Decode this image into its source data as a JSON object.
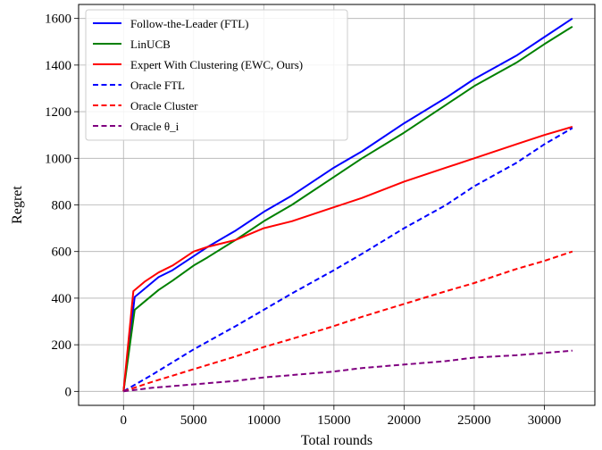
{
  "chart_data": {
    "type": "line",
    "title": "",
    "xlabel": "Total rounds",
    "ylabel": "Regret",
    "xlim": [
      -3200,
      33600
    ],
    "ylim": [
      -60,
      1660
    ],
    "x_ticks": [
      0,
      5000,
      10000,
      15000,
      20000,
      25000,
      30000
    ],
    "x_tick_labels": [
      "0",
      "5000",
      "10000",
      "15000",
      "20000",
      "25000",
      "30000"
    ],
    "y_ticks": [
      0,
      200,
      400,
      600,
      800,
      1000,
      1200,
      1400,
      1600
    ],
    "y_tick_labels": [
      "0",
      "200",
      "400",
      "600",
      "800",
      "1000",
      "1200",
      "1400",
      "1600"
    ],
    "grid": true,
    "legend_position": "top-left",
    "series": [
      {
        "name": "Follow-the-Leader (FTL)",
        "color": "#0000ff",
        "dash": "solid",
        "x": [
          0,
          800,
          1500,
          2500,
          3500,
          5000,
          6000,
          8000,
          10000,
          12000,
          15000,
          17000,
          20000,
          23000,
          25000,
          28000,
          30000,
          32000
        ],
        "y": [
          0,
          405,
          440,
          490,
          520,
          580,
          620,
          690,
          770,
          840,
          960,
          1030,
          1150,
          1260,
          1340,
          1440,
          1520,
          1600
        ]
      },
      {
        "name": "LinUCB",
        "color": "#008000",
        "dash": "solid",
        "x": [
          0,
          800,
          1500,
          2500,
          3500,
          5000,
          6000,
          8000,
          10000,
          12000,
          15000,
          17000,
          20000,
          23000,
          25000,
          28000,
          30000,
          32000
        ],
        "y": [
          0,
          350,
          385,
          435,
          475,
          540,
          575,
          650,
          730,
          800,
          920,
          1000,
          1110,
          1230,
          1310,
          1410,
          1490,
          1565
        ]
      },
      {
        "name": "Expert With Clustering (EWC, Ours)",
        "color": "#ff0000",
        "dash": "solid",
        "x": [
          0,
          700,
          1500,
          2500,
          3500,
          5000,
          6000,
          8000,
          10000,
          12000,
          15000,
          17000,
          20000,
          23000,
          25000,
          28000,
          30000,
          32000
        ],
        "y": [
          0,
          430,
          470,
          510,
          540,
          600,
          620,
          650,
          700,
          730,
          790,
          830,
          900,
          960,
          1000,
          1060,
          1100,
          1135
        ]
      },
      {
        "name": "Oracle FTL",
        "color": "#0000ff",
        "dash": "dashed",
        "x": [
          0,
          2000,
          5000,
          8000,
          10000,
          12000,
          15000,
          17000,
          20000,
          23000,
          25000,
          28000,
          30000,
          32000
        ],
        "y": [
          0,
          70,
          180,
          280,
          350,
          420,
          520,
          590,
          700,
          800,
          880,
          980,
          1060,
          1130
        ]
      },
      {
        "name": "Oracle Cluster",
        "color": "#ff0000",
        "dash": "dashed",
        "x": [
          0,
          2000,
          5000,
          8000,
          10000,
          12000,
          15000,
          17000,
          20000,
          23000,
          25000,
          28000,
          30000,
          32000
        ],
        "y": [
          0,
          40,
          95,
          150,
          190,
          225,
          280,
          320,
          375,
          430,
          465,
          525,
          560,
          600
        ]
      },
      {
        "name": "Oracle θ_i",
        "color": "#800080",
        "dash": "dashed",
        "x": [
          0,
          2000,
          5000,
          8000,
          10000,
          12000,
          15000,
          17000,
          20000,
          23000,
          25000,
          28000,
          30000,
          32000
        ],
        "y": [
          0,
          15,
          30,
          45,
          60,
          70,
          85,
          100,
          115,
          130,
          145,
          155,
          165,
          175
        ]
      }
    ]
  }
}
